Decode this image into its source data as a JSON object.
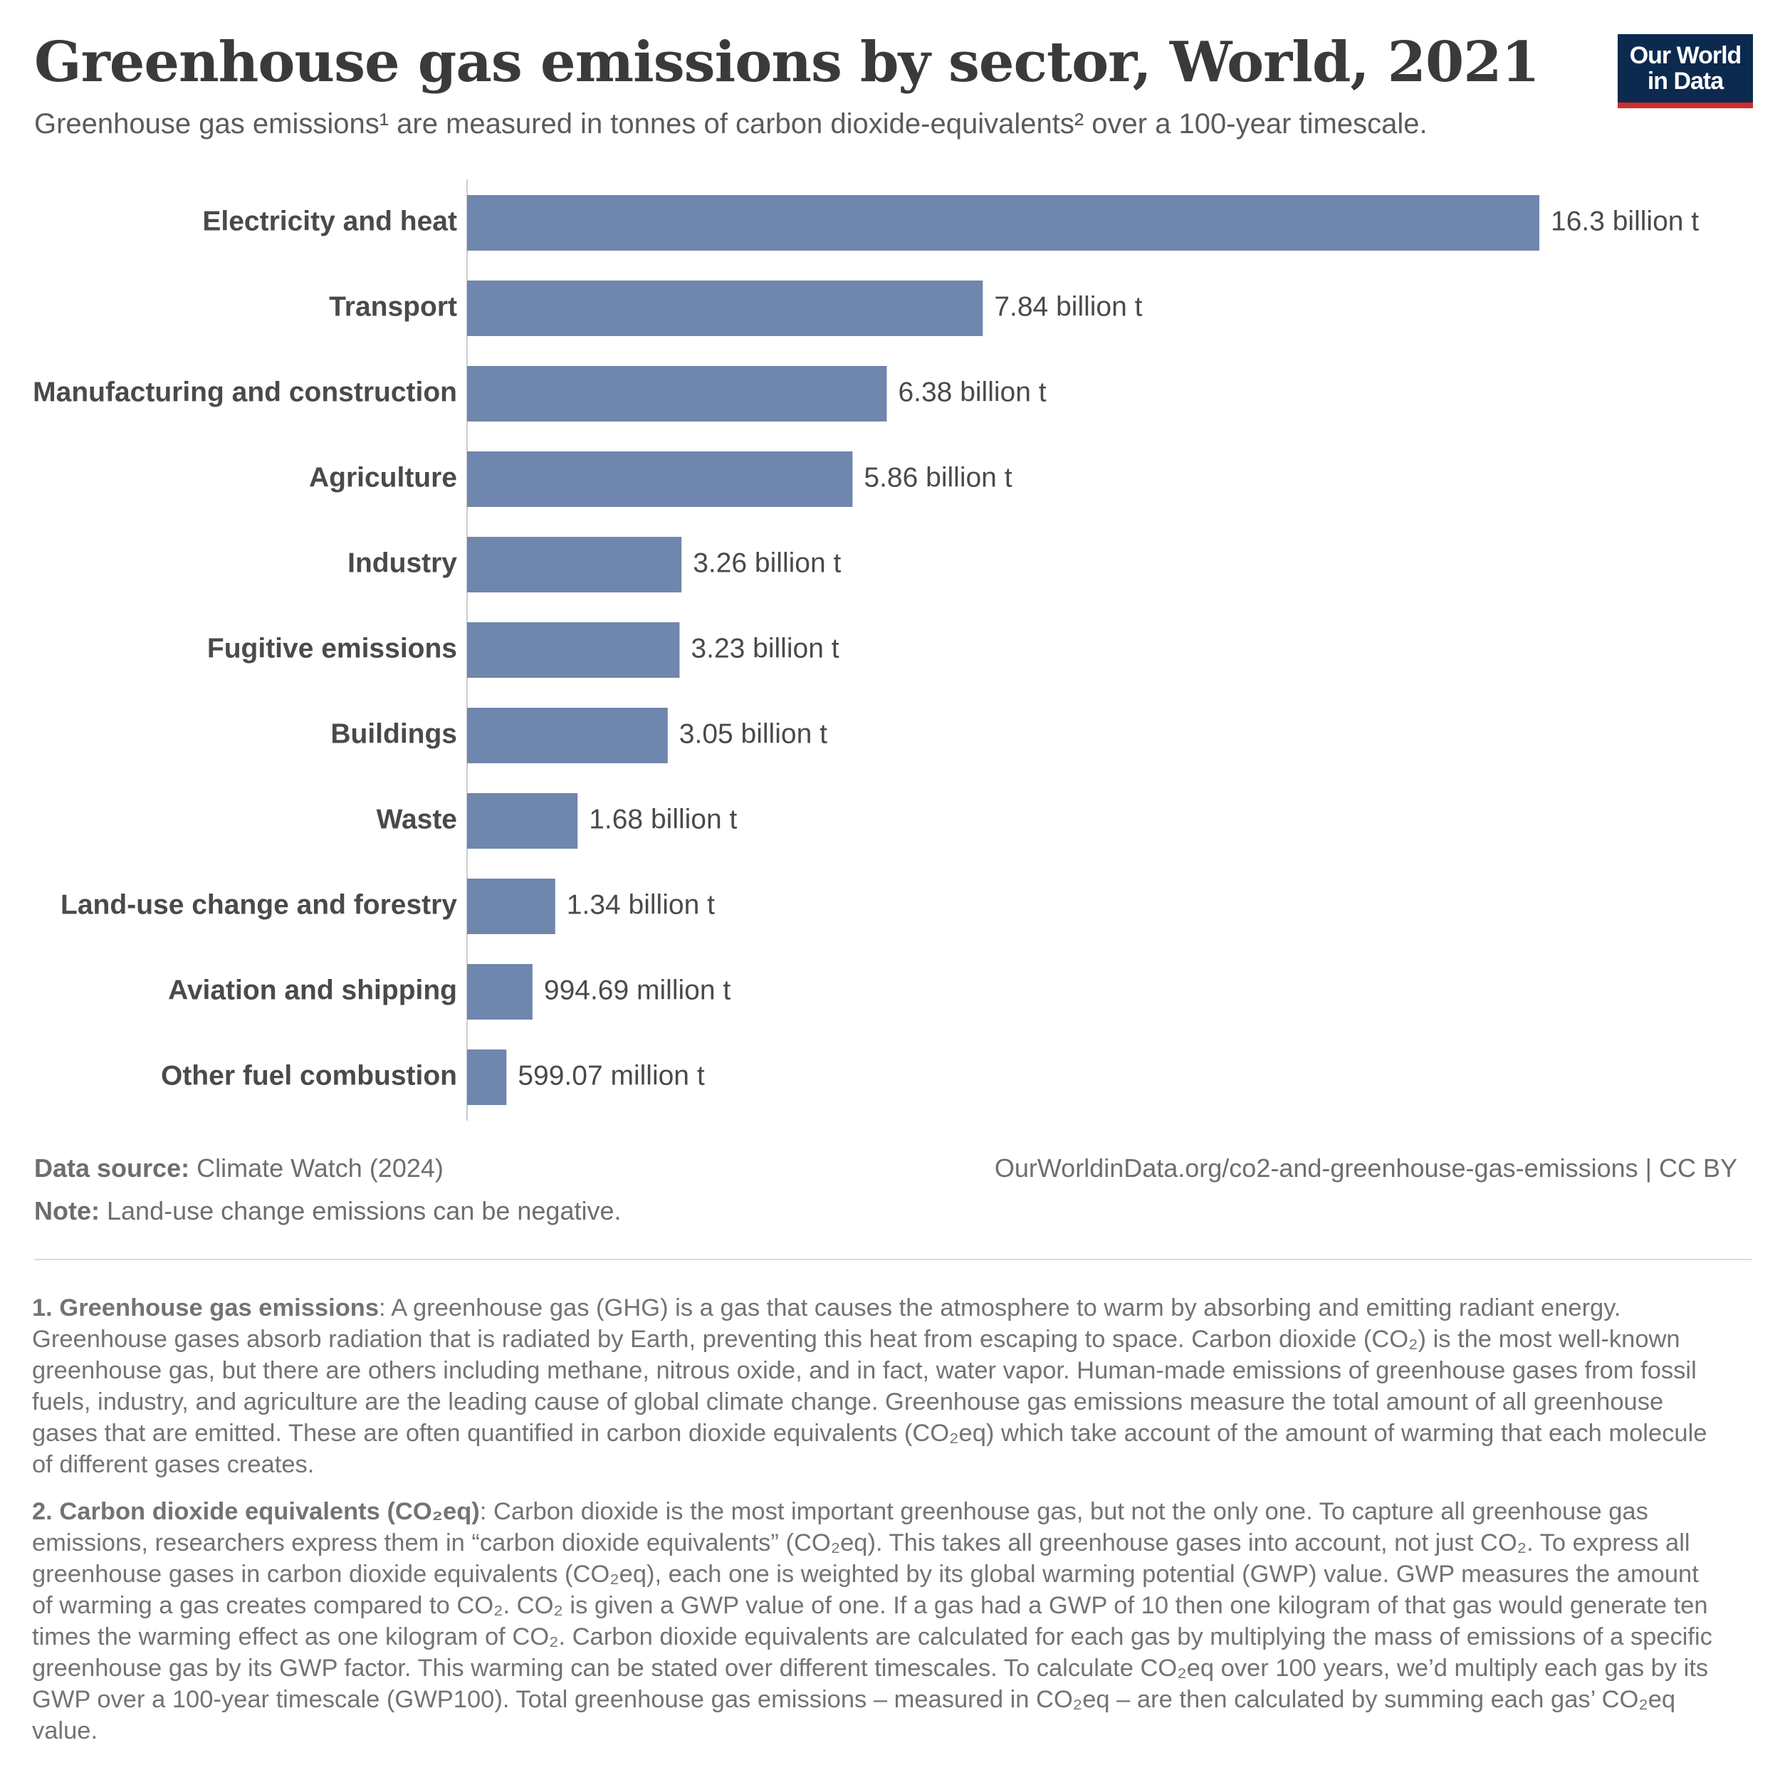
{
  "header": {
    "title": "Greenhouse gas emissions by sector, World, 2021",
    "subtitle": "Greenhouse gas emissions¹ are measured in tonnes of carbon dioxide-equivalents² over a 100-year timescale."
  },
  "logo": {
    "line1": "Our World",
    "line2": "in Data"
  },
  "colors": {
    "bar": "#6f86ad",
    "axis": "#cccccc",
    "logo_bg": "#0c2a4e",
    "logo_accent": "#cf2d2d"
  },
  "chart_data": {
    "type": "bar",
    "orientation": "horizontal",
    "title": "Greenhouse gas emissions by sector, World, 2021",
    "xlabel": "",
    "ylabel": "",
    "unit": "tonnes CO2eq",
    "categories": [
      "Electricity and heat",
      "Transport",
      "Manufacturing and construction",
      "Agriculture",
      "Industry",
      "Fugitive emissions",
      "Buildings",
      "Waste",
      "Land-use change and forestry",
      "Aviation and shipping",
      "Other fuel combustion"
    ],
    "values": [
      16300000000,
      7840000000,
      6380000000,
      5860000000,
      3260000000,
      3230000000,
      3050000000,
      1680000000,
      1340000000,
      994690000,
      599070000
    ],
    "value_labels": [
      "16.3 billion t",
      "7.84 billion t",
      "6.38 billion t",
      "5.86 billion t",
      "3.26 billion t",
      "3.23 billion t",
      "3.05 billion t",
      "1.68 billion t",
      "1.34 billion t",
      "994.69 million t",
      "599.07 million t"
    ],
    "xlim": [
      0,
      16300000000
    ]
  },
  "footer": {
    "source_label": "Data source:",
    "source_text": "Climate Watch (2024)",
    "note_label": "Note:",
    "note_text": "Land-use change emissions can be negative.",
    "url": "OurWorldinData.org/co2-and-greenhouse-gas-emissions | CC BY"
  },
  "footnotes": [
    {
      "heading": "1. Greenhouse gas emissions",
      "text": ": A greenhouse gas (GHG) is a gas that causes the atmosphere to warm by absorbing and emitting radiant energy. Greenhouse gases absorb radiation that is radiated by Earth, preventing this heat from escaping to space. Carbon dioxide (CO₂) is the most well-known greenhouse gas, but there are others including methane, nitrous oxide, and in fact, water vapor. Human-made emissions of greenhouse gases from fossil fuels, industry, and agriculture are the leading cause of global climate change. Greenhouse gas emissions measure the total amount of all greenhouse gases that are emitted. These are often quantified in carbon dioxide equivalents (CO₂eq) which take account of the amount of warming that each molecule of different gases creates."
    },
    {
      "heading": "2. Carbon dioxide equivalents (CO₂eq)",
      "text": ": Carbon dioxide is the most important greenhouse gas, but not the only one. To capture all greenhouse gas emissions, researchers express them in “carbon dioxide equivalents” (CO₂eq). This takes all greenhouse gases into account, not just CO₂. To express all greenhouse gases in carbon dioxide equivalents (CO₂eq), each one is weighted by its global warming potential (GWP) value. GWP measures the amount of warming a gas creates compared to CO₂. CO₂ is given a GWP value of one. If a gas had a GWP of 10 then one kilogram of that gas would generate ten times the warming effect as one kilogram of CO₂. Carbon dioxide equivalents are calculated for each gas by multiplying the mass of emissions of a specific greenhouse gas by its GWP factor. This warming can be stated over different timescales. To calculate CO₂eq over 100 years, we’d multiply each gas by its GWP over a 100-year timescale (GWP100). Total greenhouse gas emissions – measured in CO₂eq – are then calculated by summing each gas’ CO₂eq value."
    }
  ]
}
